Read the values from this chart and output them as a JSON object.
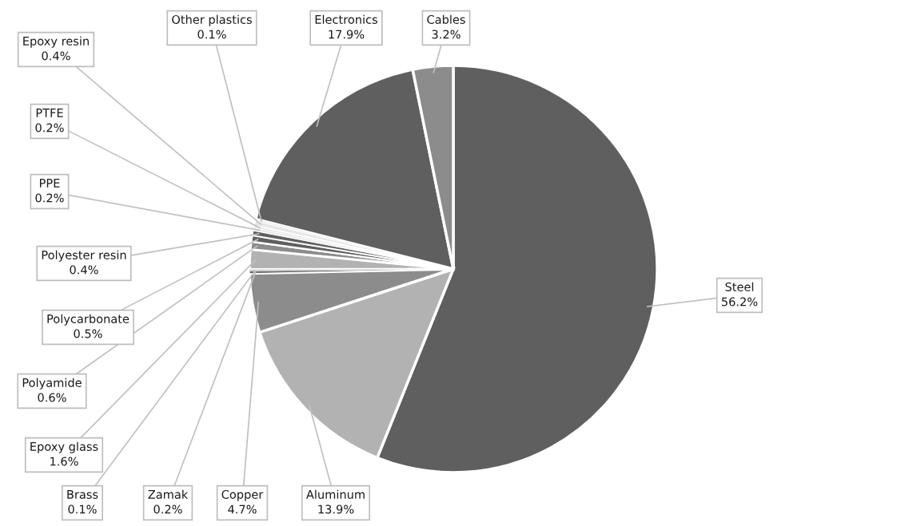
{
  "chart_data": {
    "type": "pie",
    "categories": [
      "Steel",
      "Aluminum",
      "Copper",
      "Zamak",
      "Brass",
      "Epoxy glass",
      "Polyamide",
      "Polycarbonate",
      "Polyester resin",
      "PPE",
      "PTFE",
      "Epoxy resin",
      "Other plastics",
      "Electronics",
      "Cables"
    ],
    "values": [
      56.2,
      13.9,
      4.7,
      0.2,
      0.1,
      1.6,
      0.6,
      0.5,
      0.4,
      0.2,
      0.2,
      0.4,
      0.1,
      17.9,
      3.2
    ],
    "colors": [
      "#5f5f5f",
      "#b2b2b2",
      "#8c8c8c",
      "#5f5f5f",
      "#b2b2b2",
      "#b2b2b2",
      "#8c8c8c",
      "#5f5f5f",
      "#5f5f5f",
      "#e6e6e6",
      "#e6e6e6",
      "#e6e6e6",
      "#e6e6e6",
      "#5f5f5f",
      "#8c8c8c"
    ],
    "value_labels": [
      "56.2%",
      "13.9%",
      "4.7%",
      "0.2%",
      "0.1%",
      "1.6%",
      "0.6%",
      "0.5%",
      "0.4%",
      "0.2%",
      "0.2%",
      "0.4%",
      "0.1%",
      "17.9%",
      "3.2%"
    ]
  }
}
